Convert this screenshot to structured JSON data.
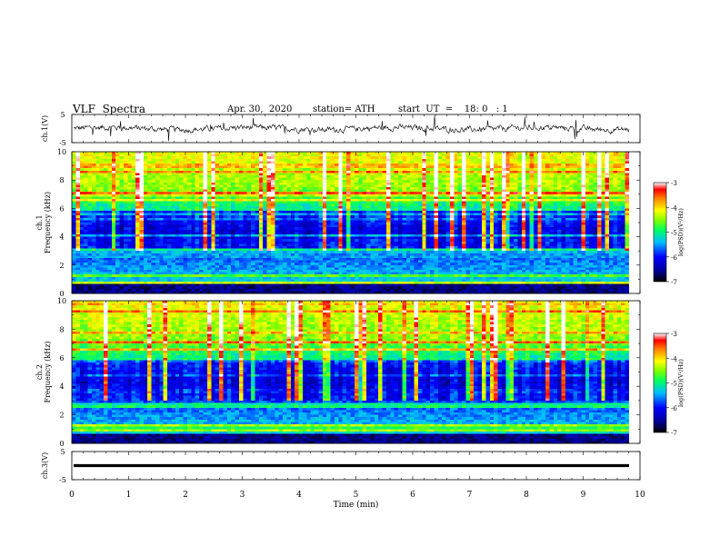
{
  "header": {
    "title": "VLF  Spectra",
    "date": "Apr. 30,  2020",
    "station": "station= ATH",
    "start": "start  UT  =    18: 0   : 1"
  },
  "chart_data": [
    {
      "type": "line",
      "ylabel": "ch.1(V)",
      "ylim": [
        -5,
        5
      ],
      "yticks": [
        "5",
        "-5"
      ],
      "xlim": [
        0,
        10
      ],
      "line_color": "#000000",
      "description_level": "noisy trace centered near 0 V"
    },
    {
      "type": "heatmap",
      "ylabel": "ch.1\nFrequency  (kHz)",
      "ylabel_lines": [
        "ch.1",
        "Frequency  (kHz)"
      ],
      "ylim": [
        0,
        10
      ],
      "yticks": [
        "0",
        "2",
        "4",
        "6",
        "8",
        "10"
      ],
      "xlim": [
        0,
        10
      ],
      "colorbar": {
        "label": "log(PSD)(V²/Hz)",
        "ticks": [
          "-3",
          "-4",
          "-5",
          "-6",
          "-7"
        ],
        "range": [
          -7,
          -3
        ]
      }
    },
    {
      "type": "heatmap",
      "ylabel": "ch.2\nFrequency  (kHz)",
      "ylabel_lines": [
        "ch.2",
        "Frequency  (kHz)"
      ],
      "ylim": [
        0,
        10
      ],
      "yticks": [
        "0",
        "2",
        "4",
        "6",
        "8",
        "10"
      ],
      "xlim": [
        0,
        10
      ],
      "colorbar": {
        "label": "log(PSD)(V²/Hz)",
        "ticks": [
          "-3",
          "-4",
          "-5",
          "-6",
          "-7"
        ],
        "range": [
          -7,
          -3
        ]
      }
    },
    {
      "type": "line",
      "ylabel": "ch.3(V)",
      "ylim": [
        -5,
        5
      ],
      "yticks": [
        "5",
        "-5"
      ],
      "xlim": [
        0,
        10
      ],
      "xlabel": "Time  (min)",
      "xticks": [
        "0",
        "1",
        "2",
        "3",
        "4",
        "5",
        "6",
        "7",
        "8",
        "9",
        "10"
      ],
      "line_color": "#000000"
    }
  ]
}
